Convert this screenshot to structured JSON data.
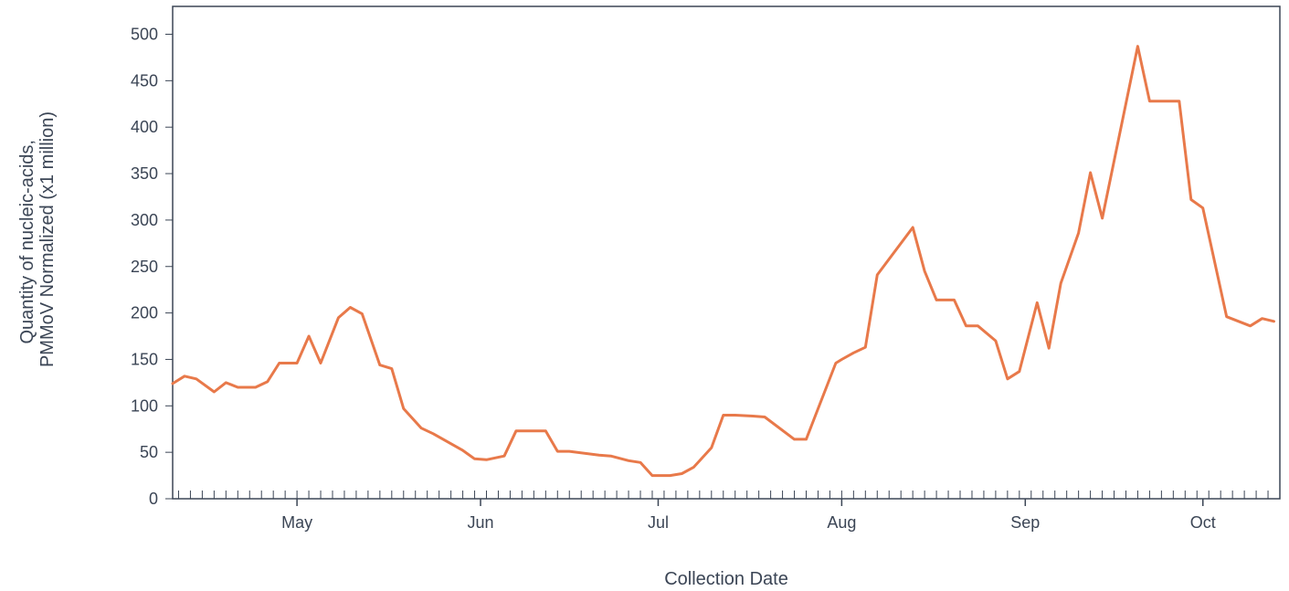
{
  "chart_data": {
    "type": "line",
    "title": "",
    "xlabel": "Collection Date",
    "ylabel_lines": [
      "Quantity of nucleic-acids,",
      "PMMoV Normalized (x1 million)"
    ],
    "ylim": [
      0,
      530
    ],
    "xlim": [
      "2023-04-10",
      "2023-10-14"
    ],
    "y_ticks": [
      0,
      50,
      100,
      150,
      200,
      250,
      300,
      350,
      400,
      450,
      500
    ],
    "x_ticks": [
      {
        "label": "May",
        "date": "2023-05-01"
      },
      {
        "label": "Jun",
        "date": "2023-06-01"
      },
      {
        "label": "Jul",
        "date": "2023-07-01"
      },
      {
        "label": "Aug",
        "date": "2023-08-01"
      },
      {
        "label": "Sep",
        "date": "2023-09-01"
      },
      {
        "label": "Oct",
        "date": "2023-10-01"
      }
    ],
    "grid": false,
    "line_color": "#e8794a",
    "series": [
      {
        "x": [
          "2023-04-10",
          "2023-04-12",
          "2023-04-14",
          "2023-04-17",
          "2023-04-19",
          "2023-04-21",
          "2023-04-24",
          "2023-04-26",
          "2023-04-28",
          "2023-05-01",
          "2023-05-03",
          "2023-05-05",
          "2023-05-08",
          "2023-05-10",
          "2023-05-12",
          "2023-05-15",
          "2023-05-17",
          "2023-05-19",
          "2023-05-22",
          "2023-05-24",
          "2023-05-29",
          "2023-05-31",
          "2023-06-02",
          "2023-06-05",
          "2023-06-07",
          "2023-06-09",
          "2023-06-12",
          "2023-06-14",
          "2023-06-16",
          "2023-06-21",
          "2023-06-23",
          "2023-06-26",
          "2023-06-28",
          "2023-06-30",
          "2023-07-03",
          "2023-07-05",
          "2023-07-07",
          "2023-07-10",
          "2023-07-12",
          "2023-07-14",
          "2023-07-17",
          "2023-07-19",
          "2023-07-24",
          "2023-07-26",
          "2023-07-31",
          "2023-08-01",
          "2023-08-03",
          "2023-08-05",
          "2023-08-07",
          "2023-08-13",
          "2023-08-15",
          "2023-08-17",
          "2023-08-20",
          "2023-08-22",
          "2023-08-24",
          "2023-08-27",
          "2023-08-29",
          "2023-08-31",
          "2023-09-03",
          "2023-09-05",
          "2023-09-07",
          "2023-09-10",
          "2023-09-12",
          "2023-09-14",
          "2023-09-20",
          "2023-09-22",
          "2023-09-27",
          "2023-09-29",
          "2023-10-01",
          "2023-10-05",
          "2023-10-09",
          "2023-10-11",
          "2023-10-13"
        ],
        "y": [
          124,
          132,
          129,
          115,
          125,
          120,
          120,
          126,
          146,
          146,
          175,
          146,
          195,
          206,
          199,
          144,
          140,
          97,
          76,
          70,
          52,
          43,
          42,
          46,
          73,
          73,
          73,
          51,
          51,
          47,
          46,
          41,
          39,
          25,
          25,
          27,
          34,
          55,
          90,
          90,
          89,
          88,
          64,
          64,
          146,
          150,
          157,
          163,
          241,
          292,
          245,
          214,
          214,
          186,
          186,
          170,
          129,
          137,
          211,
          162,
          232,
          286,
          351,
          302,
          487,
          428,
          428,
          322,
          313,
          196,
          186,
          194,
          191
        ]
      }
    ]
  }
}
